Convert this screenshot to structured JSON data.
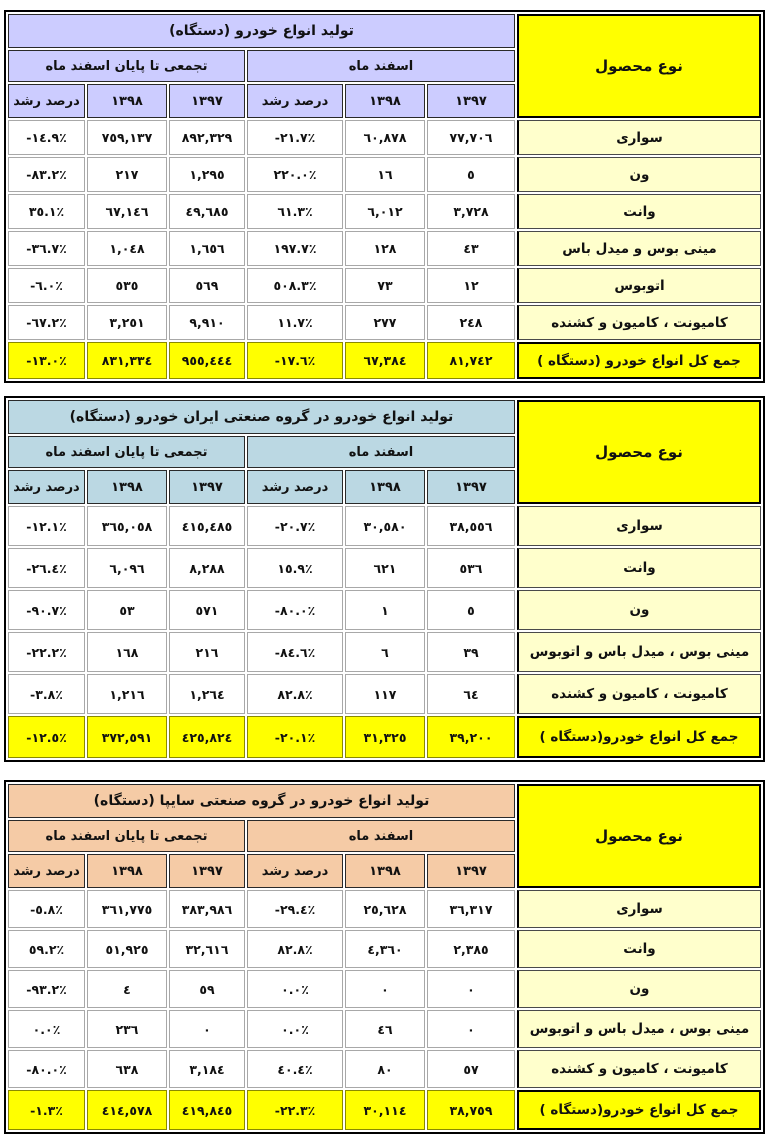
{
  "shared": {
    "product_header": "نوع محصول",
    "group_month": "اسفند ماه",
    "group_cumulative": "تجمعی تا پایان اسفند ماه",
    "year_1397": "١٣٩٧",
    "year_1398": "١٣٩٨",
    "growth_label": "درصد رشد",
    "colors": {
      "table1_header": "#CCCCFF",
      "table2_header": "#BBD8E3",
      "table3_header": "#F5CBA6",
      "product_column": "#FFFFCC",
      "total_row": "#FFFF00",
      "product_header_cell": "#FFFF00"
    }
  },
  "tables": [
    {
      "title": "تولید انواع خودرو (دستگاه)",
      "header_color": "#CCCCFF",
      "rows": [
        {
          "product": "سواری",
          "month_1397": "٧٧,٧٠٦",
          "month_1398": "٦٠,٨٧٨",
          "month_growth": "-٢١.٧٪",
          "cum_1397": "٨٩٢,٣٢٩",
          "cum_1398": "٧٥٩,١٣٧",
          "cum_growth": "-١٤.٩٪"
        },
        {
          "product": "ون",
          "month_1397": "٥",
          "month_1398": "١٦",
          "month_growth": "٢٢٠.٠٪",
          "cum_1397": "١,٢٩٥",
          "cum_1398": "٢١٧",
          "cum_growth": "-٨٣.٢٪"
        },
        {
          "product": "وانت",
          "month_1397": "٣,٧٢٨",
          "month_1398": "٦,٠١٢",
          "month_growth": "٦١.٣٪",
          "cum_1397": "٤٩,٦٨٥",
          "cum_1398": "٦٧,١٤٦",
          "cum_growth": "٣٥.١٪"
        },
        {
          "product": "مینی بوس و میدل باس",
          "month_1397": "٤٣",
          "month_1398": "١٢٨",
          "month_growth": "١٩٧.٧٪",
          "cum_1397": "١,٦٥٦",
          "cum_1398": "١,٠٤٨",
          "cum_growth": "-٣٦.٧٪"
        },
        {
          "product": "اتوبوس",
          "month_1397": "١٢",
          "month_1398": "٧٣",
          "month_growth": "٥٠٨.٣٪",
          "cum_1397": "٥٦٩",
          "cum_1398": "٥٣٥",
          "cum_growth": "-٦.٠٪"
        },
        {
          "product": "کامیونت ، کامیون و کشنده",
          "month_1397": "٢٤٨",
          "month_1398": "٢٧٧",
          "month_growth": "١١.٧٪",
          "cum_1397": "٩,٩١٠",
          "cum_1398": "٣,٢٥١",
          "cum_growth": "-٦٧.٢٪"
        }
      ],
      "total": {
        "product": "جمع کل انواع خودرو (دستگاه )",
        "month_1397": "٨١,٧٤٢",
        "month_1398": "٦٧,٣٨٤",
        "month_growth": "-١٧.٦٪",
        "cum_1397": "٩٥٥,٤٤٤",
        "cum_1398": "٨٣١,٣٣٤",
        "cum_growth": "-١٣.٠٪"
      }
    },
    {
      "title": "تولید انواع خودرو در گروه صنعتی ایران خودرو (دستگاه)",
      "header_color": "#BBD8E3",
      "rows": [
        {
          "product": "سواری",
          "month_1397": "٣٨,٥٥٦",
          "month_1398": "٣٠,٥٨٠",
          "month_growth": "-٢٠.٧٪",
          "cum_1397": "٤١٥,٤٨٥",
          "cum_1398": "٣٦٥,٠٥٨",
          "cum_growth": "-١٢.١٪"
        },
        {
          "product": "وانت",
          "month_1397": "٥٣٦",
          "month_1398": "٦٢١",
          "month_growth": "١٥.٩٪",
          "cum_1397": "٨,٢٨٨",
          "cum_1398": "٦,٠٩٦",
          "cum_growth": "-٢٦.٤٪"
        },
        {
          "product": "ون",
          "month_1397": "٥",
          "month_1398": "١",
          "month_growth": "-٨٠.٠٪",
          "cum_1397": "٥٧١",
          "cum_1398": "٥٣",
          "cum_growth": "-٩٠.٧٪"
        },
        {
          "product": "مینی بوس ، میدل باس و اتوبوس",
          "month_1397": "٣٩",
          "month_1398": "٦",
          "month_growth": "-٨٤.٦٪",
          "cum_1397": "٢١٦",
          "cum_1398": "١٦٨",
          "cum_growth": "-٢٢.٢٪"
        },
        {
          "product": "کامیونت ، کامیون و کشنده",
          "month_1397": "٦٤",
          "month_1398": "١١٧",
          "month_growth": "٨٢.٨٪",
          "cum_1397": "١,٢٦٤",
          "cum_1398": "١,٢١٦",
          "cum_growth": "-٣.٨٪"
        }
      ],
      "total": {
        "product": "جمع کل انواع خودرو(دستگاه )",
        "month_1397": "٣٩,٢٠٠",
        "month_1398": "٣١,٣٢٥",
        "month_growth": "-٢٠.١٪",
        "cum_1397": "٤٢٥,٨٢٤",
        "cum_1398": "٣٧٢,٥٩١",
        "cum_growth": "-١٢.٥٪"
      }
    },
    {
      "title": "تولید انواع خودرو در گروه صنعتی سایپا (دستگاه)",
      "header_color": "#F5CBA6",
      "rows": [
        {
          "product": "سواری",
          "month_1397": "٣٦,٣١٧",
          "month_1398": "٢٥,٦٢٨",
          "month_growth": "-٢٩.٤٪",
          "cum_1397": "٣٨٣,٩٨٦",
          "cum_1398": "٣٦١,٧٧٥",
          "cum_growth": "-٥.٨٪"
        },
        {
          "product": "وانت",
          "month_1397": "٢,٣٨٥",
          "month_1398": "٤,٣٦٠",
          "month_growth": "٨٢.٨٪",
          "cum_1397": "٣٢,٦١٦",
          "cum_1398": "٥١,٩٢٥",
          "cum_growth": "٥٩.٢٪"
        },
        {
          "product": "ون",
          "month_1397": "٠",
          "month_1398": "٠",
          "month_growth": "٠.٠٪",
          "cum_1397": "٥٩",
          "cum_1398": "٤",
          "cum_growth": "-٩٣.٢٪"
        },
        {
          "product": "مینی بوس ، میدل باس و اتوبوس",
          "month_1397": "٠",
          "month_1398": "٤٦",
          "month_growth": "٠.٠٪",
          "cum_1397": "٠",
          "cum_1398": "٢٣٦",
          "cum_growth": "٠.٠٪"
        },
        {
          "product": "کامیونت ، کامیون و کشنده",
          "month_1397": "٥٧",
          "month_1398": "٨٠",
          "month_growth": "٤٠.٤٪",
          "cum_1397": "٣,١٨٤",
          "cum_1398": "٦٣٨",
          "cum_growth": "-٨٠.٠٪"
        }
      ],
      "total": {
        "product": "جمع کل انواع خودرو(دستگاه )",
        "month_1397": "٣٨,٧٥٩",
        "month_1398": "٣٠,١١٤",
        "month_growth": "-٢٢.٣٪",
        "cum_1397": "٤١٩,٨٤٥",
        "cum_1398": "٤١٤,٥٧٨",
        "cum_growth": "-١.٣٪"
      }
    }
  ]
}
